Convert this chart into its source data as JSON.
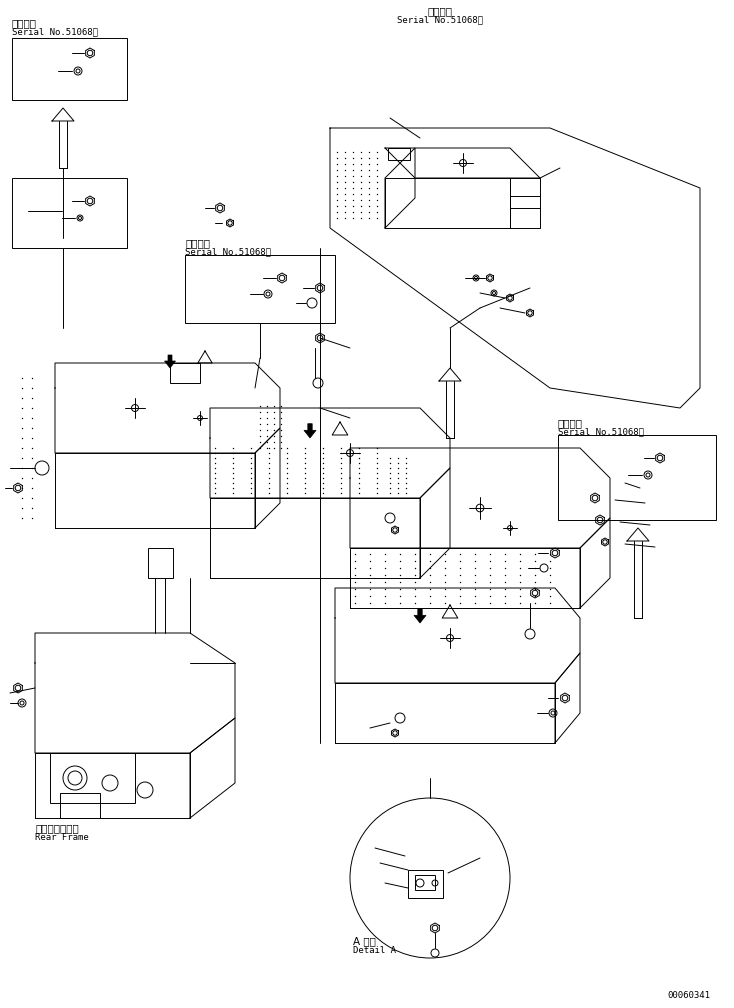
{
  "bg_color": "#ffffff",
  "line_color": "#000000",
  "fig_width": 7.34,
  "fig_height": 10.08,
  "dpi": 100,
  "top_center_label1": "適用号機",
  "top_center_label2": "Serial No.51068～",
  "top_left_label1": "適用号機",
  "top_left_label2": "Serial No.51068～",
  "mid_label1": "適用号機",
  "mid_label2": "Serial No.51068～",
  "bot_right_label1": "適用号機",
  "bot_right_label2": "Serial No.51068～",
  "rear_frame_jp": "リヤーフレーム",
  "rear_frame_en": "Rear Frame",
  "detail_jp": "A 詳細",
  "detail_en": "Detail A",
  "doc_number": "00060341",
  "fs_label": 7.5,
  "fs_mono": 6.5,
  "fs_doc": 6.5
}
